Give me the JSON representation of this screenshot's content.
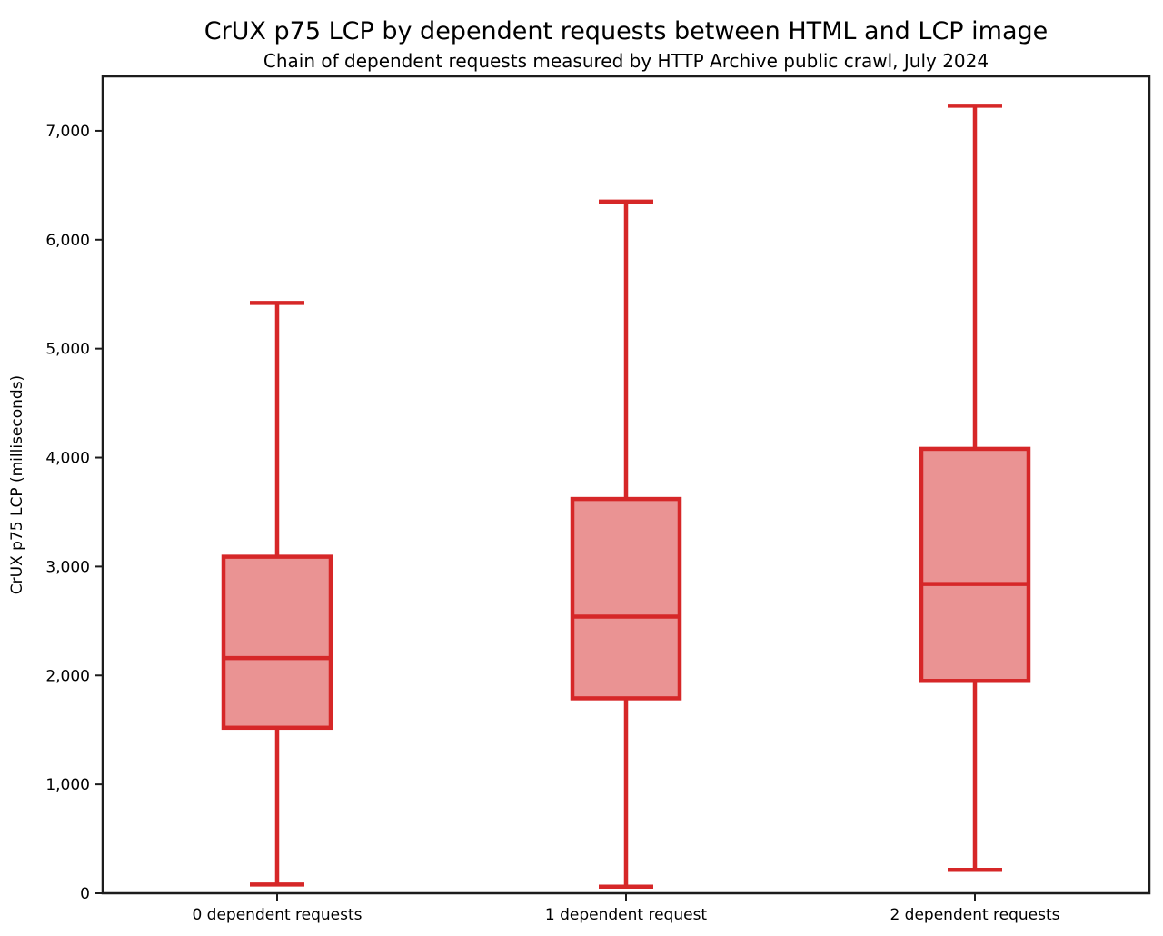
{
  "chart_data": {
    "type": "boxplot",
    "title": "CrUX p75 LCP by dependent requests between HTML and LCP image",
    "subtitle": "Chain of dependent requests measured by HTTP Archive public crawl, July 2024",
    "ylabel": "CrUX p75 LCP (milliseconds)",
    "xlabel": "",
    "ylim": [
      0,
      7500
    ],
    "yticks": [
      0,
      1000,
      2000,
      3000,
      4000,
      5000,
      6000,
      7000
    ],
    "grid": false,
    "legend": "none",
    "categories": [
      "0 dependent requests",
      "1 dependent request",
      "2 dependent requests"
    ],
    "series": [
      {
        "category": "0 dependent requests",
        "whisker_low": 80,
        "q1": 1520,
        "median": 2160,
        "q3": 3090,
        "whisker_high": 5420
      },
      {
        "category": "1 dependent request",
        "whisker_low": 60,
        "q1": 1790,
        "median": 2540,
        "q3": 3620,
        "whisker_high": 6350
      },
      {
        "category": "2 dependent requests",
        "whisker_low": 215,
        "q1": 1950,
        "median": 2840,
        "q3": 4080,
        "whisker_high": 7230
      }
    ],
    "colors": {
      "box_fill": "#ea9393",
      "box_edge": "#d62728",
      "median": "#d62728",
      "whisker": "#d62728",
      "axis": "#1c1c1c",
      "text": "#000000"
    }
  }
}
